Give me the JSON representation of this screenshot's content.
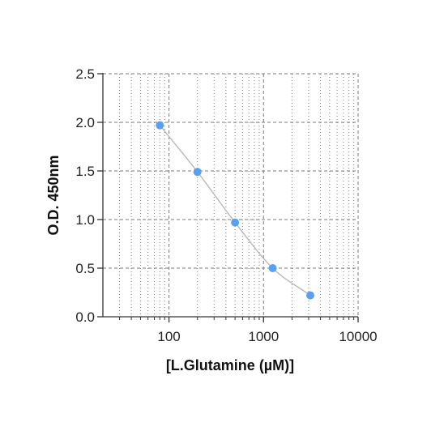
{
  "chart_data": {
    "type": "scatter",
    "title": "",
    "xlabel": "[L.Glutamine (µM)]",
    "ylabel": "O.D. 450nm",
    "x_scale": "log",
    "xlim": [
      20,
      10000
    ],
    "ylim": [
      0,
      2.5
    ],
    "x_ticks": [
      100,
      1000,
      10000
    ],
    "x_tick_labels": [
      "100",
      "1000",
      "10000"
    ],
    "y_ticks": [
      0,
      0.5,
      1.0,
      1.5,
      2.0,
      2.5
    ],
    "y_tick_labels": [
      "0.0",
      "0.5",
      "1.0",
      "1.5",
      "2.0",
      "2.5"
    ],
    "grid": true,
    "fit_curve": true,
    "series": [
      {
        "x": [
          80,
          200,
          500,
          1250,
          3125
        ],
        "y": [
          1.97,
          1.49,
          0.97,
          0.5,
          0.22
        ]
      }
    ],
    "colors": {
      "points": "#5aa0f0",
      "curve": "#b8b8b8",
      "grid": "#7a7a7a",
      "axis": "#333333"
    }
  }
}
